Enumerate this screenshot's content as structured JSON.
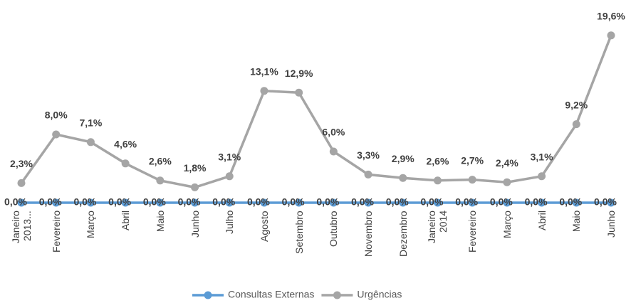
{
  "chart_data": {
    "type": "line",
    "categories": [
      "Janeiro 2013...",
      "Fevereiro",
      "Março",
      "Abril",
      "Maio",
      "Junho",
      "Julho",
      "Agosto",
      "Setembro",
      "Outubro",
      "Novembro",
      "Dezembro",
      "Janeiro 2014",
      "Fevereiro",
      "Março",
      "Abril",
      "Maio",
      "Junho"
    ],
    "series": [
      {
        "name": "Consultas Externas",
        "color": "#5b9bd5",
        "values": [
          0,
          0,
          0,
          0,
          0,
          0,
          0,
          0,
          0,
          0,
          0,
          0,
          0,
          0,
          0,
          0,
          0,
          0
        ],
        "value_labels": [
          "0,0%",
          "0,0%",
          "0,0%",
          "0,0%",
          "0,0%",
          "0,0%",
          "0,0%",
          "0,0%",
          "0,0%",
          "0,0%",
          "0,0%",
          "0,0%",
          "0,0%",
          "0,0%",
          "0,0%",
          "0,0%",
          "0,0%",
          "0,0%"
        ]
      },
      {
        "name": "Urgências",
        "color": "#a5a5a5",
        "values": [
          2.3,
          8.0,
          7.1,
          4.6,
          2.6,
          1.8,
          3.1,
          13.1,
          12.9,
          6.0,
          3.3,
          2.9,
          2.6,
          2.7,
          2.4,
          3.1,
          9.2,
          19.6
        ],
        "value_labels": [
          "2,3%",
          "8,0%",
          "7,1%",
          "4,6%",
          "2,6%",
          "1,8%",
          "3,1%",
          "13,1%",
          "12,9%",
          "6,0%",
          "3,3%",
          "2,9%",
          "2,6%",
          "2,7%",
          "2,4%",
          "3,1%",
          "9,2%",
          "19,6%"
        ]
      }
    ],
    "legend": "bottom"
  }
}
